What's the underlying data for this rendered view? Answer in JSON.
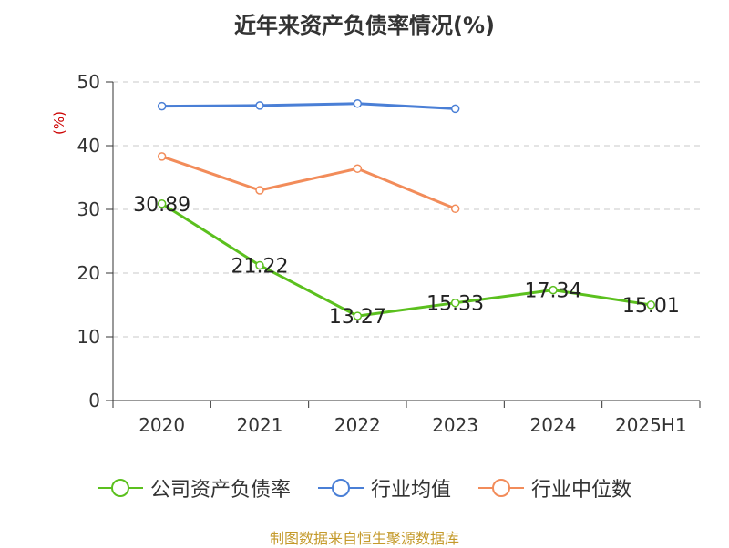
{
  "chart_data": {
    "type": "line",
    "title": "近年来资产负债率情况(%)",
    "ylabel": "(%)",
    "categories": [
      "2020",
      "2021",
      "2022",
      "2023",
      "2024",
      "2025H1"
    ],
    "ylim": [
      0,
      50
    ],
    "yticks": [
      0,
      10,
      20,
      30,
      40,
      50
    ],
    "grid": true,
    "legend_position": "bottom",
    "series": [
      {
        "name": "公司资产负债率",
        "color": "#5bc01e",
        "values": [
          30.89,
          21.22,
          13.27,
          15.33,
          17.34,
          15.01
        ],
        "show_labels": true
      },
      {
        "name": "行业均值",
        "color": "#4a7fd6",
        "values": [
          46.2,
          46.3,
          46.6,
          45.8,
          null,
          null
        ],
        "show_labels": false
      },
      {
        "name": "行业中位数",
        "color": "#f28c5a",
        "values": [
          38.3,
          33.0,
          36.4,
          30.1,
          null,
          null
        ],
        "show_labels": false
      }
    ]
  },
  "source": "制图数据来自恒生聚源数据库"
}
